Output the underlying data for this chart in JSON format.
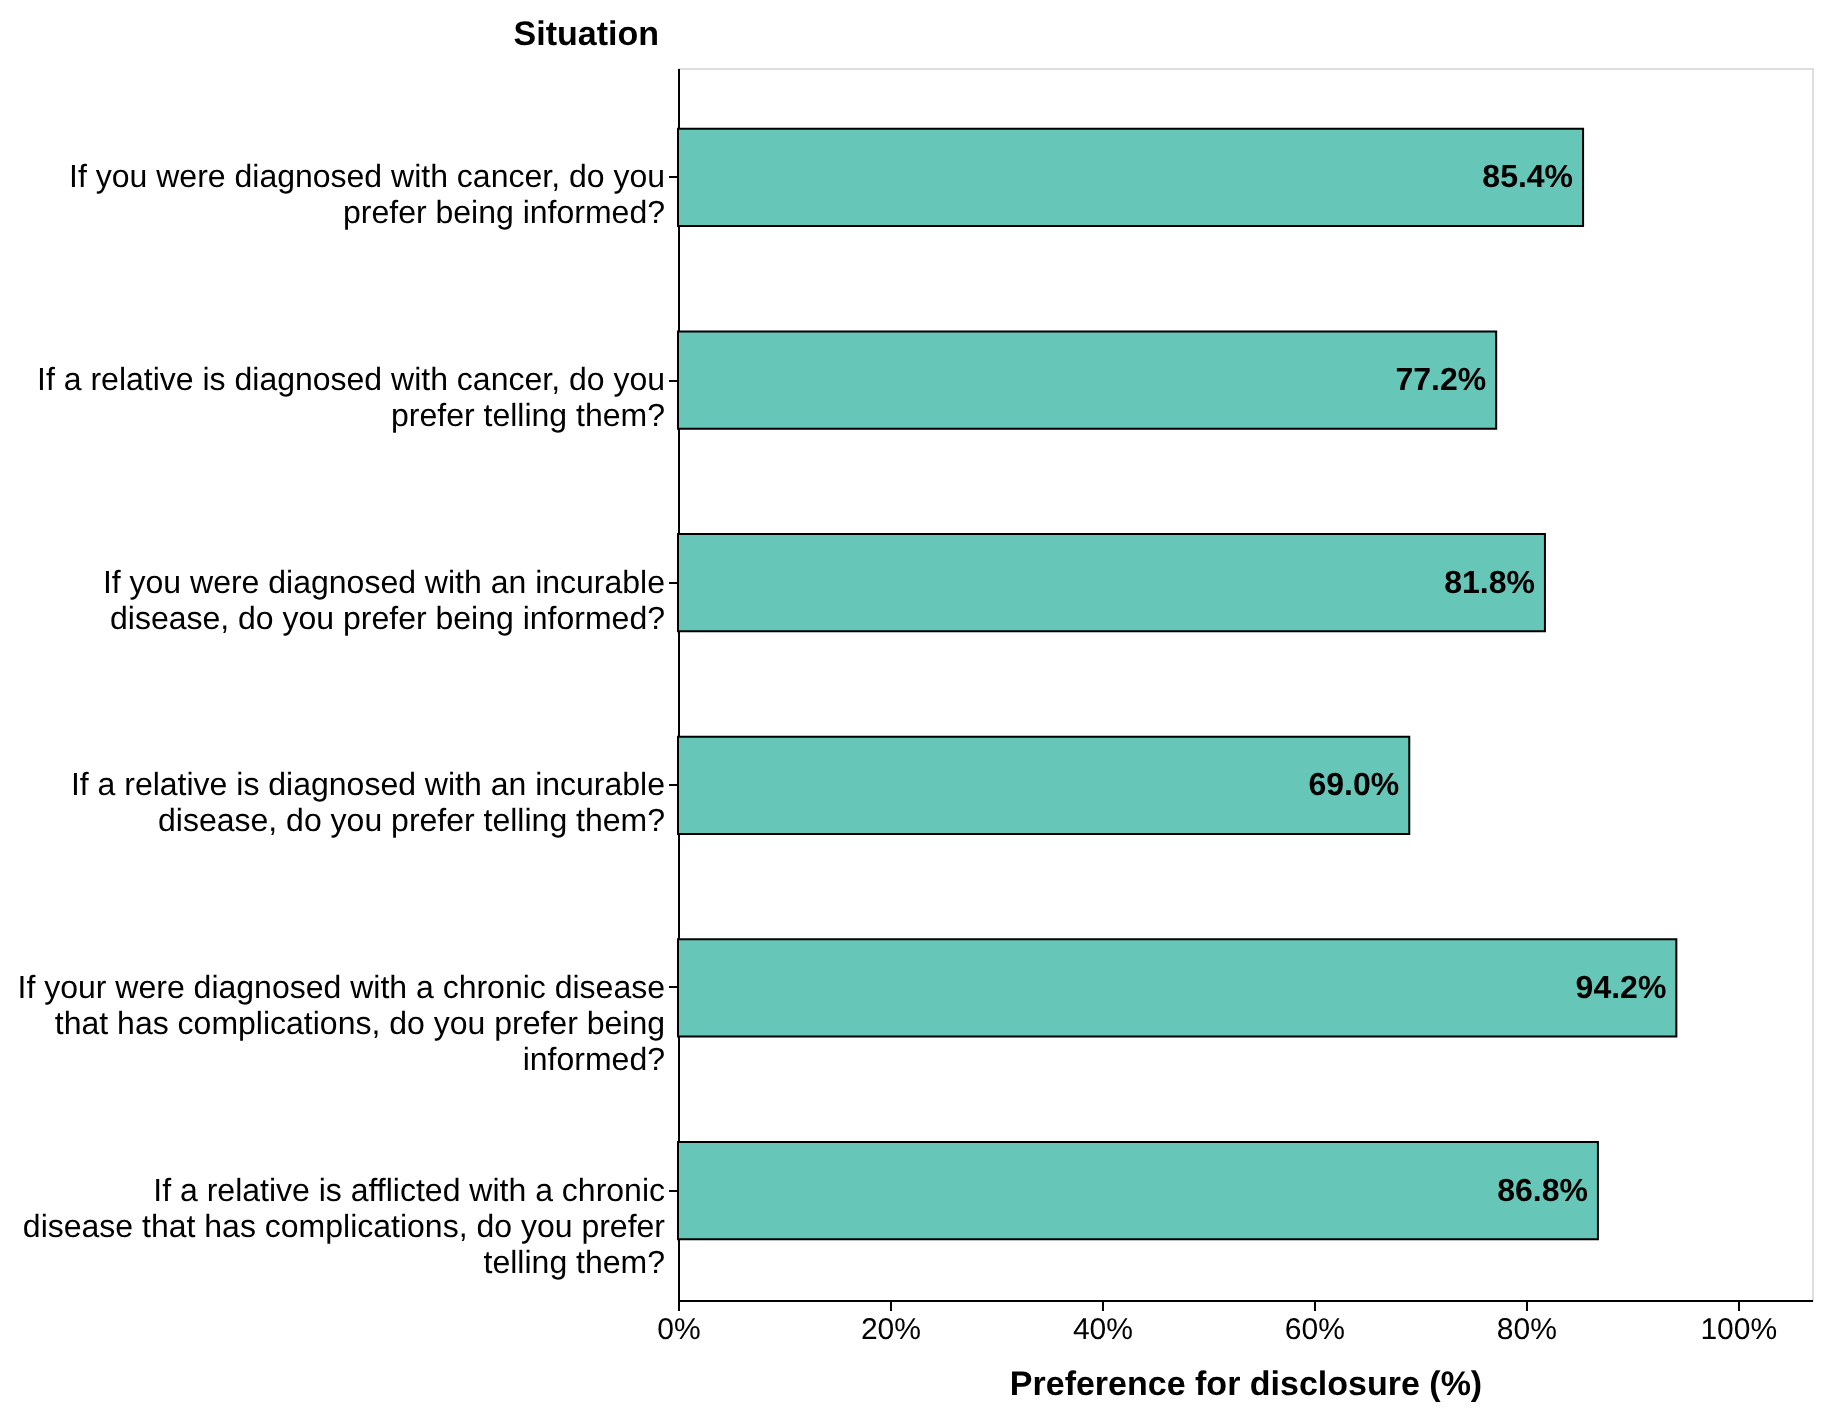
{
  "chart_data": {
    "type": "bar",
    "orientation": "horizontal",
    "categories": [
      "If you were diagnosed with cancer, do you prefer being informed?",
      "If a relative is diagnosed with cancer, do you prefer telling them?",
      "If you were diagnosed with an incurable disease, do you prefer being informed?",
      "If a relative is diagnosed with an incurable disease, do you prefer telling them?",
      "If your were diagnosed with a chronic disease that has complications, do you prefer being informed?",
      "If a relative is afflicted with a chronic disease that has complications, do you prefer telling them?"
    ],
    "values": [
      85.4,
      77.2,
      81.8,
      69.0,
      94.2,
      86.8
    ],
    "value_labels": [
      "85.4%",
      "77.2%",
      "81.8%",
      "69.0%",
      "94.2%",
      "86.8%"
    ],
    "color": "#66c6b8",
    "xlim": [
      0,
      107
    ],
    "xticks": [
      {
        "value": 0,
        "label": "0%"
      },
      {
        "value": 20,
        "label": "20%"
      },
      {
        "value": 40,
        "label": "40%"
      },
      {
        "value": 60,
        "label": "60%"
      },
      {
        "value": 80,
        "label": "80%"
      },
      {
        "value": 100,
        "label": "100%"
      }
    ],
    "xlabel": "Preference for disclosure (%)",
    "ylabel": "Situation",
    "grid": false
  }
}
